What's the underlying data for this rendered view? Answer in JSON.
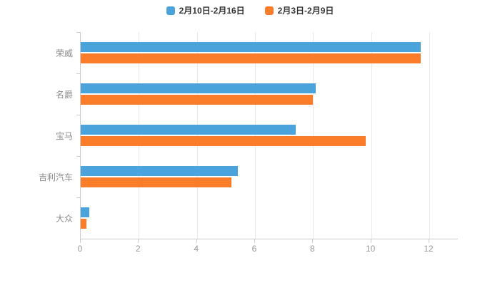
{
  "legend": {
    "items": [
      {
        "label": "2月10日-2月16日",
        "color": "#4BA3DB"
      },
      {
        "label": "2月3日-2月9日",
        "color": "#FC7D29"
      }
    ]
  },
  "chart_data": {
    "type": "bar",
    "orientation": "horizontal",
    "title": "",
    "xlabel": "",
    "ylabel": "",
    "categories": [
      "荣威",
      "名爵",
      "宝马",
      "吉利汽车",
      "大众"
    ],
    "series": [
      {
        "name": "2月10日-2月16日",
        "color": "#4BA3DB",
        "values": [
          11.7,
          8.1,
          7.4,
          5.4,
          0.3
        ]
      },
      {
        "name": "2月3日-2月9日",
        "color": "#FC7D29",
        "values": [
          11.7,
          8.0,
          9.8,
          5.2,
          0.2
        ]
      }
    ],
    "xlim": [
      0,
      12
    ],
    "xticks": [
      0,
      2,
      4,
      6,
      8,
      10,
      12
    ],
    "grid": true,
    "legend_position": "top"
  }
}
